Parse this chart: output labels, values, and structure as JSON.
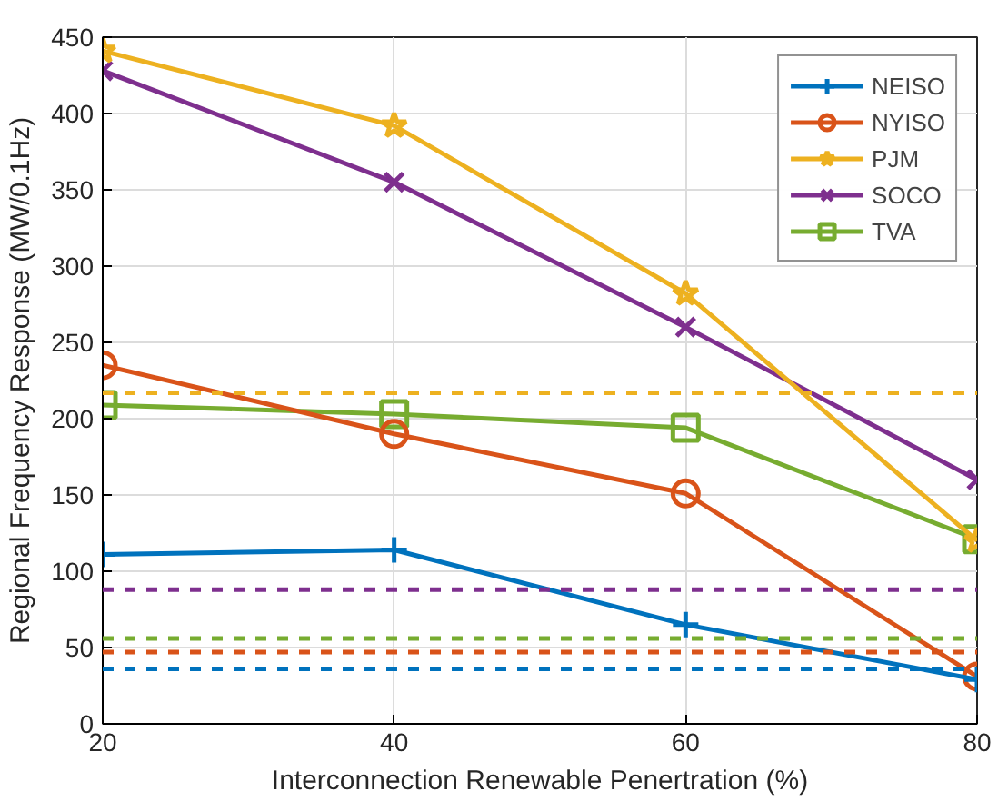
{
  "chart_data": {
    "type": "line",
    "xlabel": "Interconnection Renewable Penertration (%)",
    "ylabel": "Regional Frequency Response (MW/0.1Hz)",
    "x": [
      20,
      40,
      60,
      80
    ],
    "xlim": [
      20,
      80
    ],
    "xticks": [
      20,
      40,
      60,
      80
    ],
    "ylim": [
      0,
      450
    ],
    "yticks": [
      0,
      50,
      100,
      150,
      200,
      250,
      300,
      350,
      400,
      450
    ],
    "grid": true,
    "legend": "top right",
    "line_style": "solid",
    "series": [
      {
        "name": "NEISO",
        "color": "#0072bd",
        "marker": "cross",
        "values": [
          111,
          114,
          65,
          29
        ]
      },
      {
        "name": "NYISO",
        "color": "#d95319",
        "marker": "circle",
        "values": [
          235,
          190,
          151,
          31
        ]
      },
      {
        "name": "PJM",
        "color": "#edb120",
        "marker": "star",
        "values": [
          441,
          392,
          282,
          120
        ]
      },
      {
        "name": "SOCO",
        "color": "#7e2f8e",
        "marker": "x",
        "values": [
          428,
          355,
          260,
          160
        ]
      },
      {
        "name": "TVA",
        "color": "#77ac30",
        "marker": "square",
        "values": [
          209,
          203,
          194,
          121
        ]
      }
    ],
    "ref_lines": [
      {
        "axis": "y",
        "value": 217,
        "color": "#edb120",
        "line_style": "dashed"
      },
      {
        "axis": "y",
        "value": 88,
        "color": "#7e2f8e",
        "line_style": "dashed"
      },
      {
        "axis": "y",
        "value": 56,
        "color": "#77ac30",
        "line_style": "dashed"
      },
      {
        "axis": "y",
        "value": 47,
        "color": "#d95319",
        "line_style": "dashed"
      },
      {
        "axis": "y",
        "value": 36,
        "color": "#0072bd",
        "line_style": "dashed"
      }
    ]
  }
}
